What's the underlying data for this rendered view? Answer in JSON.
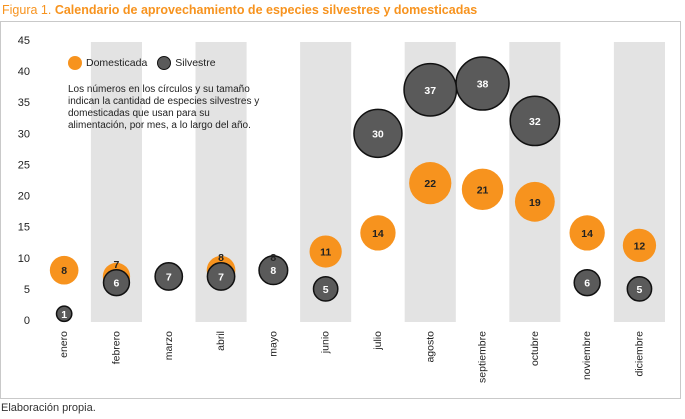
{
  "figure": {
    "label": "Figura 1.",
    "title": "Calendario de aprovechamiento de especies silvestres y domesticadas",
    "source": "Elaboración propia."
  },
  "colors": {
    "domesticada": "#f7931e",
    "silvestre": "#5a5a5a",
    "silvestre_stroke": "#111111",
    "band": "#e3e3e3"
  },
  "chart_data": {
    "type": "scatter",
    "categories": [
      "enero",
      "febrero",
      "marzo",
      "abril",
      "mayo",
      "junio",
      "julio",
      "agosto",
      "septiembre",
      "octubre",
      "noviembre",
      "diciembre"
    ],
    "ylim": [
      0,
      45
    ],
    "yticks": [
      0,
      5,
      10,
      15,
      20,
      25,
      30,
      35,
      40,
      45
    ],
    "series": [
      {
        "name": "Domesticada",
        "values": [
          8,
          7,
          null,
          8,
          8,
          11,
          14,
          22,
          21,
          19,
          14,
          12
        ]
      },
      {
        "name": "Silvestre",
        "values": [
          1,
          6,
          7,
          7,
          8,
          5,
          30,
          37,
          38,
          32,
          6,
          5
        ]
      }
    ],
    "legend": {
      "position": "top-left",
      "note": "Los números en los círculos y su tamaño indican la cantidad de especies silvestres y domesticadas que usan para su alimentación, por mes, a lo largo del año."
    },
    "grid": false
  }
}
